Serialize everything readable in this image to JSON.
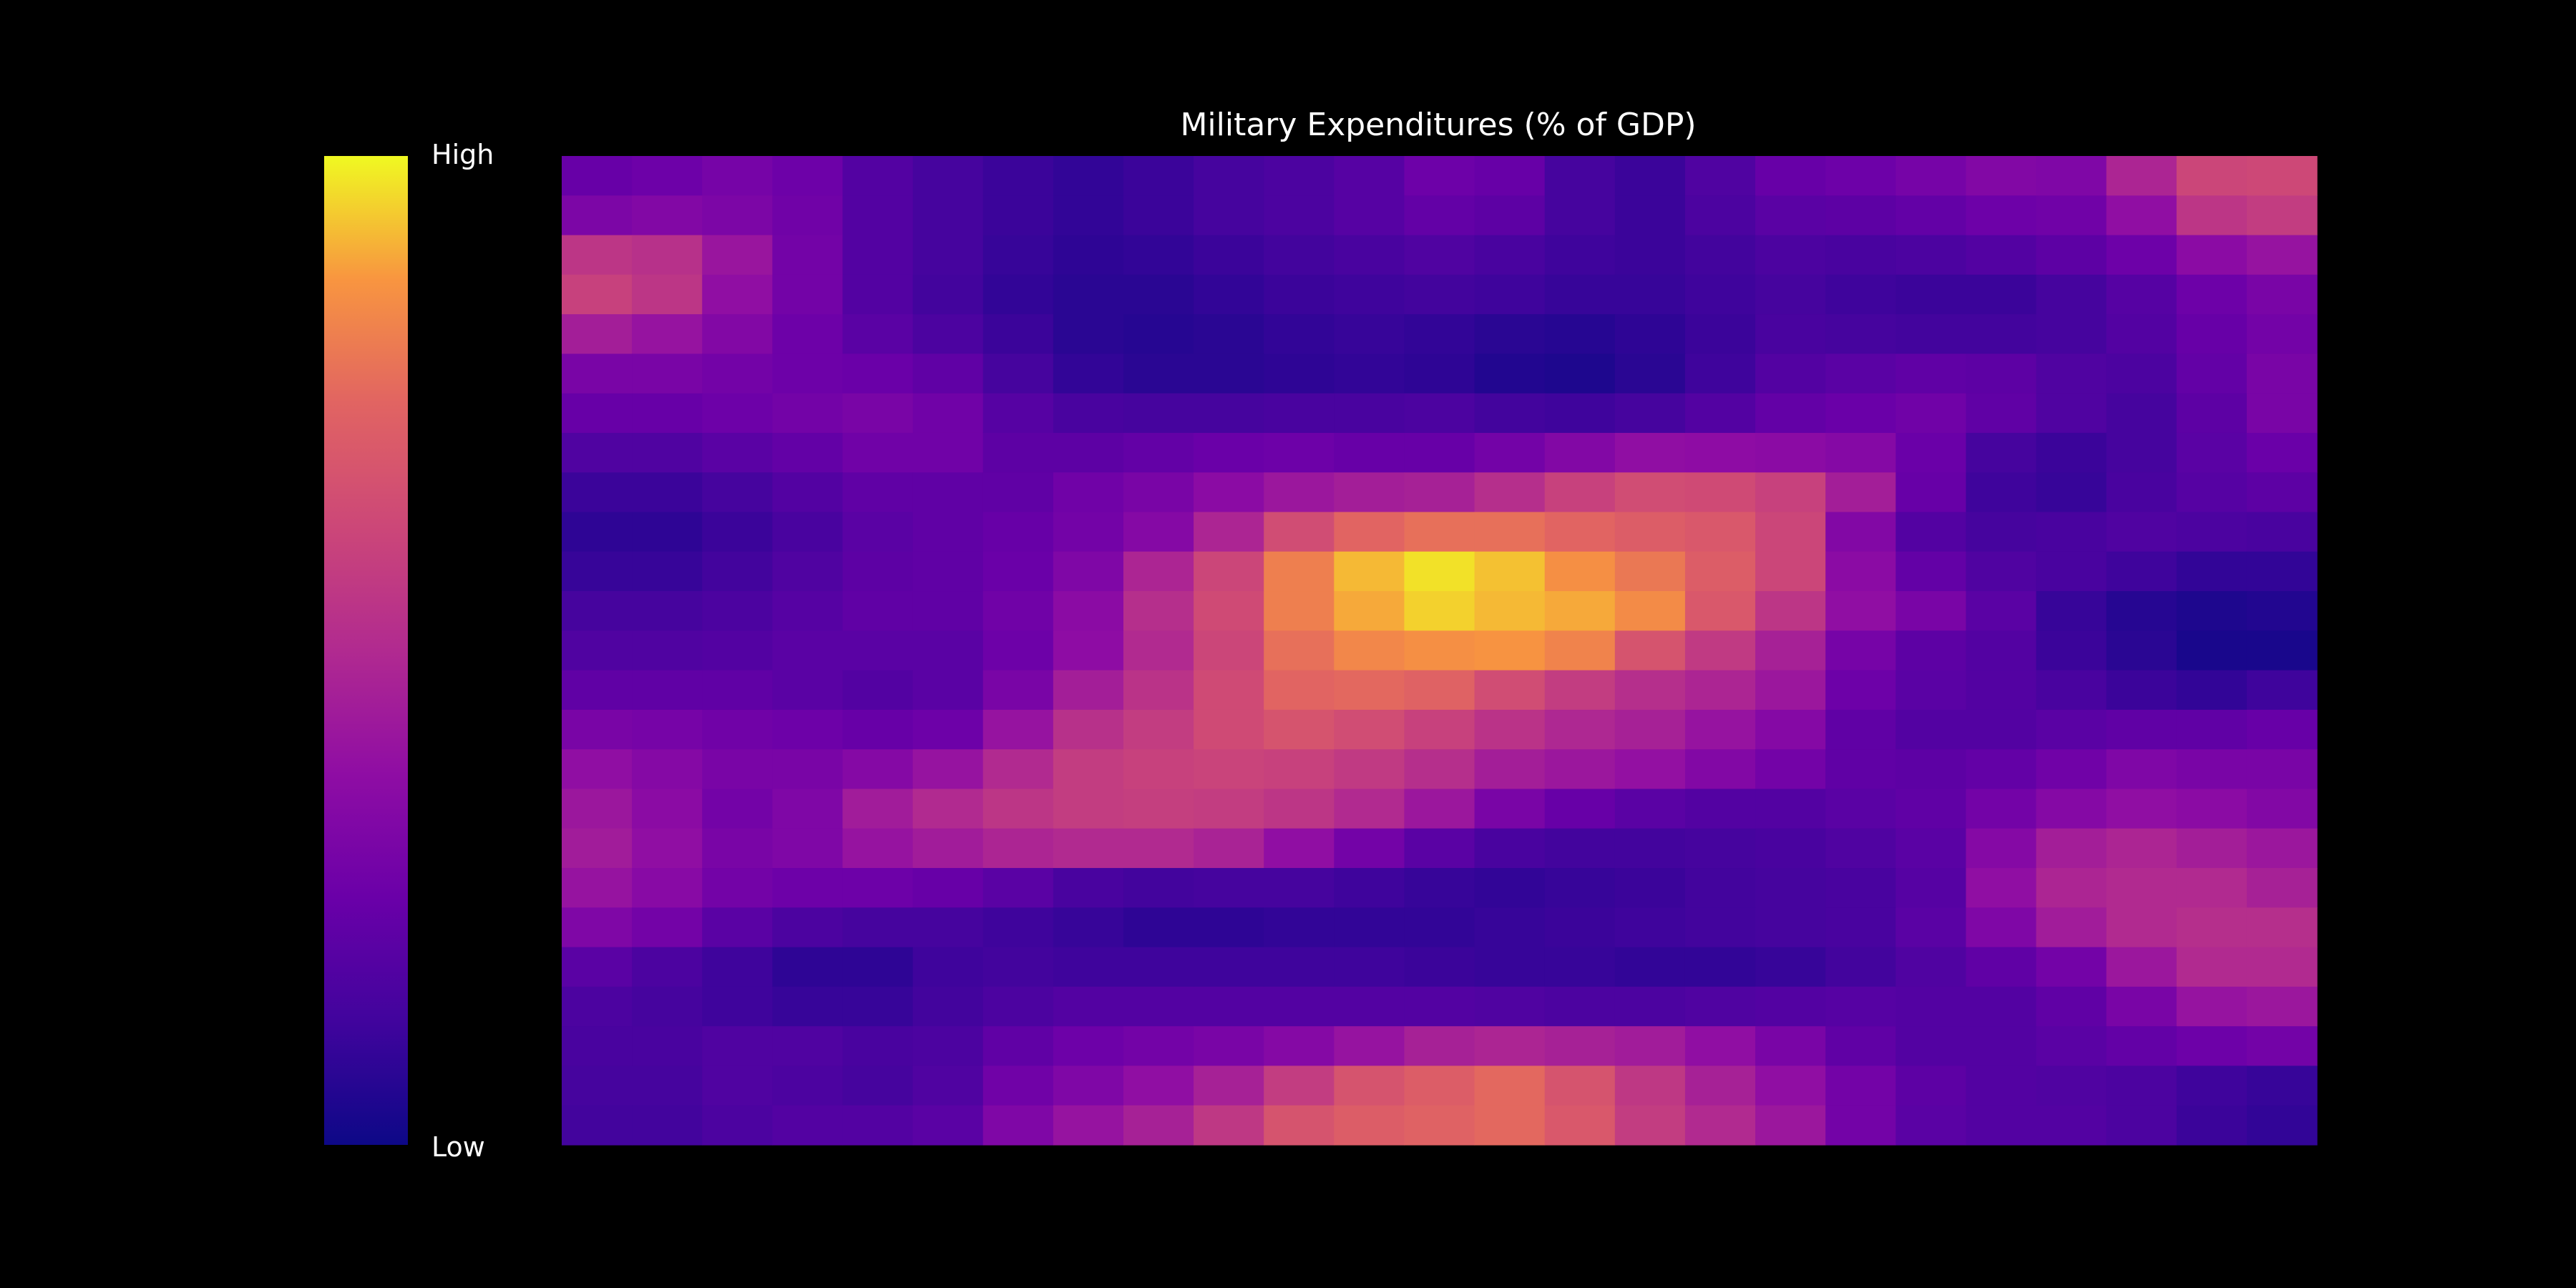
{
  "chart_data": {
    "type": "heatmap",
    "title": "Military Expenditures (% of GDP)",
    "xlabel": "",
    "ylabel": "",
    "colorscale": "plasma",
    "colorbar": {
      "high_label": "High",
      "low_label": "Low",
      "placement": "left"
    },
    "value_range": [
      0,
      1
    ],
    "rows": 25,
    "cols": 25,
    "z": [
      [
        0.24,
        0.26,
        0.29,
        0.26,
        0.18,
        0.14,
        0.11,
        0.09,
        0.11,
        0.14,
        0.16,
        0.19,
        0.26,
        0.24,
        0.14,
        0.11,
        0.17,
        0.24,
        0.26,
        0.29,
        0.33,
        0.32,
        0.48,
        0.62,
        0.63
      ],
      [
        0.31,
        0.33,
        0.31,
        0.27,
        0.18,
        0.14,
        0.11,
        0.09,
        0.11,
        0.14,
        0.16,
        0.19,
        0.23,
        0.21,
        0.14,
        0.11,
        0.16,
        0.2,
        0.21,
        0.23,
        0.26,
        0.27,
        0.38,
        0.55,
        0.58
      ],
      [
        0.55,
        0.53,
        0.41,
        0.28,
        0.18,
        0.14,
        0.1,
        0.08,
        0.09,
        0.11,
        0.13,
        0.15,
        0.17,
        0.15,
        0.12,
        0.11,
        0.13,
        0.16,
        0.15,
        0.16,
        0.18,
        0.21,
        0.26,
        0.36,
        0.4
      ],
      [
        0.6,
        0.55,
        0.38,
        0.28,
        0.18,
        0.13,
        0.09,
        0.07,
        0.07,
        0.09,
        0.11,
        0.12,
        0.13,
        0.12,
        0.1,
        0.1,
        0.12,
        0.14,
        0.12,
        0.11,
        0.11,
        0.14,
        0.19,
        0.26,
        0.3
      ],
      [
        0.45,
        0.4,
        0.33,
        0.26,
        0.2,
        0.16,
        0.11,
        0.07,
        0.06,
        0.07,
        0.09,
        0.1,
        0.09,
        0.07,
        0.06,
        0.08,
        0.11,
        0.15,
        0.14,
        0.13,
        0.13,
        0.14,
        0.18,
        0.24,
        0.28
      ],
      [
        0.3,
        0.3,
        0.28,
        0.26,
        0.25,
        0.22,
        0.14,
        0.09,
        0.07,
        0.07,
        0.08,
        0.09,
        0.08,
        0.05,
        0.04,
        0.07,
        0.12,
        0.18,
        0.2,
        0.22,
        0.21,
        0.17,
        0.16,
        0.23,
        0.3
      ],
      [
        0.24,
        0.24,
        0.26,
        0.28,
        0.3,
        0.27,
        0.19,
        0.15,
        0.14,
        0.14,
        0.15,
        0.15,
        0.16,
        0.13,
        0.12,
        0.14,
        0.18,
        0.23,
        0.25,
        0.27,
        0.22,
        0.17,
        0.14,
        0.21,
        0.3
      ],
      [
        0.17,
        0.17,
        0.2,
        0.23,
        0.27,
        0.27,
        0.21,
        0.21,
        0.23,
        0.25,
        0.26,
        0.24,
        0.24,
        0.28,
        0.33,
        0.38,
        0.37,
        0.36,
        0.34,
        0.25,
        0.14,
        0.11,
        0.14,
        0.2,
        0.25
      ],
      [
        0.11,
        0.11,
        0.14,
        0.18,
        0.22,
        0.22,
        0.22,
        0.27,
        0.3,
        0.36,
        0.42,
        0.45,
        0.46,
        0.52,
        0.6,
        0.65,
        0.64,
        0.6,
        0.45,
        0.24,
        0.12,
        0.1,
        0.15,
        0.19,
        0.21
      ],
      [
        0.08,
        0.08,
        0.11,
        0.15,
        0.2,
        0.22,
        0.24,
        0.28,
        0.34,
        0.48,
        0.65,
        0.75,
        0.78,
        0.78,
        0.75,
        0.72,
        0.7,
        0.62,
        0.33,
        0.18,
        0.14,
        0.15,
        0.17,
        0.16,
        0.15
      ],
      [
        0.1,
        0.1,
        0.13,
        0.17,
        0.21,
        0.22,
        0.25,
        0.32,
        0.48,
        0.62,
        0.82,
        0.92,
        0.97,
        0.93,
        0.86,
        0.8,
        0.72,
        0.62,
        0.36,
        0.23,
        0.17,
        0.15,
        0.12,
        0.09,
        0.09
      ],
      [
        0.14,
        0.14,
        0.16,
        0.19,
        0.22,
        0.22,
        0.27,
        0.36,
        0.52,
        0.64,
        0.82,
        0.9,
        0.95,
        0.92,
        0.9,
        0.85,
        0.7,
        0.55,
        0.38,
        0.3,
        0.2,
        0.1,
        0.06,
        0.04,
        0.05
      ],
      [
        0.17,
        0.17,
        0.18,
        0.2,
        0.2,
        0.2,
        0.26,
        0.37,
        0.5,
        0.62,
        0.78,
        0.84,
        0.86,
        0.87,
        0.83,
        0.68,
        0.57,
        0.46,
        0.29,
        0.21,
        0.18,
        0.11,
        0.07,
        0.03,
        0.03
      ],
      [
        0.22,
        0.22,
        0.22,
        0.2,
        0.18,
        0.2,
        0.3,
        0.45,
        0.54,
        0.64,
        0.75,
        0.76,
        0.74,
        0.65,
        0.58,
        0.52,
        0.48,
        0.42,
        0.26,
        0.2,
        0.18,
        0.15,
        0.11,
        0.09,
        0.12
      ],
      [
        0.3,
        0.29,
        0.27,
        0.26,
        0.24,
        0.26,
        0.4,
        0.53,
        0.58,
        0.64,
        0.68,
        0.65,
        0.6,
        0.54,
        0.49,
        0.46,
        0.4,
        0.34,
        0.22,
        0.18,
        0.18,
        0.2,
        0.22,
        0.22,
        0.24
      ],
      [
        0.38,
        0.34,
        0.3,
        0.3,
        0.34,
        0.4,
        0.5,
        0.58,
        0.6,
        0.61,
        0.6,
        0.57,
        0.52,
        0.45,
        0.42,
        0.39,
        0.33,
        0.28,
        0.22,
        0.21,
        0.23,
        0.27,
        0.32,
        0.3,
        0.3
      ],
      [
        0.42,
        0.36,
        0.28,
        0.32,
        0.44,
        0.5,
        0.55,
        0.58,
        0.59,
        0.58,
        0.55,
        0.5,
        0.42,
        0.3,
        0.24,
        0.2,
        0.18,
        0.18,
        0.2,
        0.22,
        0.28,
        0.34,
        0.38,
        0.36,
        0.33
      ],
      [
        0.44,
        0.38,
        0.3,
        0.32,
        0.4,
        0.44,
        0.48,
        0.5,
        0.5,
        0.47,
        0.38,
        0.28,
        0.2,
        0.15,
        0.13,
        0.13,
        0.14,
        0.15,
        0.17,
        0.2,
        0.34,
        0.45,
        0.48,
        0.45,
        0.42
      ],
      [
        0.4,
        0.35,
        0.28,
        0.26,
        0.26,
        0.24,
        0.2,
        0.15,
        0.13,
        0.14,
        0.14,
        0.12,
        0.1,
        0.09,
        0.1,
        0.11,
        0.13,
        0.14,
        0.15,
        0.19,
        0.38,
        0.48,
        0.5,
        0.5,
        0.46
      ],
      [
        0.32,
        0.28,
        0.2,
        0.16,
        0.14,
        0.14,
        0.12,
        0.1,
        0.08,
        0.08,
        0.09,
        0.09,
        0.09,
        0.1,
        0.11,
        0.12,
        0.13,
        0.14,
        0.15,
        0.2,
        0.32,
        0.44,
        0.5,
        0.52,
        0.52
      ],
      [
        0.2,
        0.16,
        0.12,
        0.08,
        0.08,
        0.12,
        0.13,
        0.12,
        0.12,
        0.12,
        0.12,
        0.12,
        0.11,
        0.1,
        0.1,
        0.09,
        0.09,
        0.1,
        0.13,
        0.17,
        0.22,
        0.28,
        0.42,
        0.5,
        0.5
      ],
      [
        0.16,
        0.14,
        0.12,
        0.1,
        0.1,
        0.13,
        0.16,
        0.18,
        0.18,
        0.18,
        0.18,
        0.18,
        0.18,
        0.17,
        0.16,
        0.16,
        0.17,
        0.18,
        0.19,
        0.18,
        0.18,
        0.22,
        0.3,
        0.4,
        0.42
      ],
      [
        0.15,
        0.15,
        0.17,
        0.17,
        0.15,
        0.16,
        0.22,
        0.26,
        0.28,
        0.3,
        0.34,
        0.4,
        0.46,
        0.48,
        0.46,
        0.44,
        0.38,
        0.3,
        0.22,
        0.18,
        0.18,
        0.2,
        0.23,
        0.26,
        0.28
      ],
      [
        0.14,
        0.14,
        0.17,
        0.16,
        0.14,
        0.17,
        0.27,
        0.32,
        0.38,
        0.46,
        0.58,
        0.68,
        0.72,
        0.76,
        0.68,
        0.56,
        0.46,
        0.38,
        0.28,
        0.21,
        0.18,
        0.17,
        0.16,
        0.12,
        0.1
      ],
      [
        0.13,
        0.13,
        0.16,
        0.18,
        0.18,
        0.2,
        0.32,
        0.4,
        0.46,
        0.56,
        0.68,
        0.72,
        0.74,
        0.76,
        0.7,
        0.58,
        0.5,
        0.42,
        0.28,
        0.2,
        0.18,
        0.18,
        0.16,
        0.11,
        0.09
      ]
    ]
  }
}
